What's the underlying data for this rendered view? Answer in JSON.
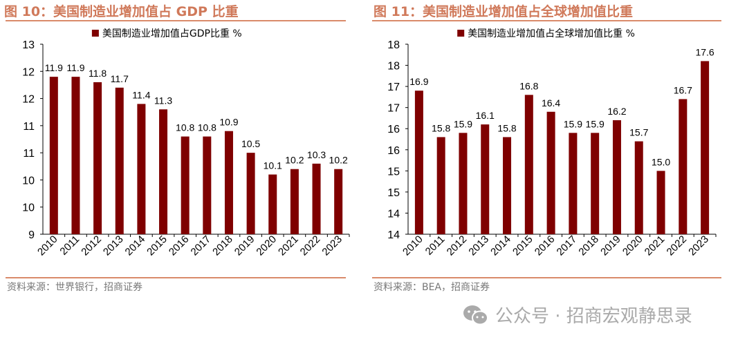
{
  "charts_header": [
    {
      "title": "图 10：美国制造业增加值占 GDP 比重",
      "source": "资料来源：世界银行，招商证券"
    },
    {
      "title": "图 11：美国制造业增加值占全球增加值比重",
      "source": "资料来源：BEA，招商证券"
    }
  ],
  "watermark": "公众号 · 招商宏观静思录",
  "colors": {
    "bar": "#7f0000",
    "title": "#d0795a"
  },
  "chart_data": [
    {
      "type": "bar",
      "title": "",
      "legend": "美国制造业增加值占GDP比重 %",
      "legend_position": "top",
      "categories": [
        "2010",
        "2011",
        "2012",
        "2013",
        "2014",
        "2015",
        "2016",
        "2017",
        "2018",
        "2019",
        "2020",
        "2021",
        "2022",
        "2023"
      ],
      "values": [
        11.9,
        11.9,
        11.8,
        11.7,
        11.4,
        11.3,
        10.8,
        10.8,
        10.9,
        10.5,
        10.1,
        10.2,
        10.3,
        10.2
      ],
      "ylim": [
        9,
        12.5
      ],
      "yticks": [
        9,
        9.5,
        10,
        10.5,
        11,
        11.5,
        12,
        12.5
      ],
      "ytick_labels": [
        "9",
        "10",
        "10",
        "11",
        "11",
        "12",
        "12",
        "13"
      ],
      "grid": false
    },
    {
      "type": "bar",
      "title": "",
      "legend": "美国制造业增加值占全球增加值比重 %",
      "legend_position": "top",
      "categories": [
        "2010",
        "2011",
        "2012",
        "2013",
        "2014",
        "2015",
        "2016",
        "2017",
        "2018",
        "2019",
        "2020",
        "2021",
        "2022",
        "2023"
      ],
      "values": [
        16.9,
        15.8,
        15.9,
        16.1,
        15.8,
        16.8,
        16.4,
        15.9,
        15.9,
        16.2,
        15.7,
        15.0,
        16.7,
        17.6
      ],
      "ylim": [
        13.5,
        18
      ],
      "yticks": [
        13.5,
        14,
        14.5,
        15,
        15.5,
        16,
        16.5,
        17,
        17.5,
        18
      ],
      "ytick_labels": [
        "14",
        "14",
        "15",
        "15",
        "16",
        "16",
        "17",
        "17",
        "18",
        "18"
      ],
      "grid": false
    }
  ]
}
